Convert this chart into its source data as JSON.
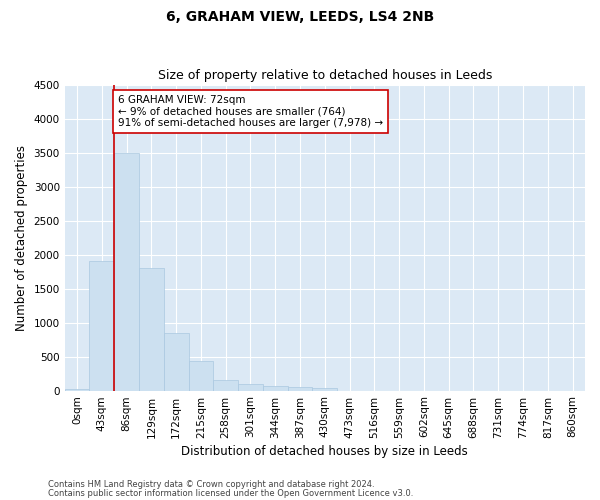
{
  "title": "6, GRAHAM VIEW, LEEDS, LS4 2NB",
  "subtitle": "Size of property relative to detached houses in Leeds",
  "xlabel": "Distribution of detached houses by size in Leeds",
  "ylabel": "Number of detached properties",
  "bar_color": "#cce0f0",
  "bar_edge_color": "#aac8e0",
  "categories": [
    "0sqm",
    "43sqm",
    "86sqm",
    "129sqm",
    "172sqm",
    "215sqm",
    "258sqm",
    "301sqm",
    "344sqm",
    "387sqm",
    "430sqm",
    "473sqm",
    "516sqm",
    "559sqm",
    "602sqm",
    "645sqm",
    "688sqm",
    "731sqm",
    "774sqm",
    "817sqm",
    "860sqm"
  ],
  "values": [
    20,
    1900,
    3500,
    1800,
    850,
    430,
    150,
    95,
    70,
    55,
    40,
    0,
    0,
    0,
    0,
    0,
    0,
    0,
    0,
    0,
    0
  ],
  "ylim": [
    0,
    4500
  ],
  "yticks": [
    0,
    500,
    1000,
    1500,
    2000,
    2500,
    3000,
    3500,
    4000,
    4500
  ],
  "property_line_color": "#cc0000",
  "annotation_text": "6 GRAHAM VIEW: 72sqm\n← 9% of detached houses are smaller (764)\n91% of semi-detached houses are larger (7,978) →",
  "annotation_box_color": "#ffffff",
  "annotation_box_edge": "#cc0000",
  "plot_bg_color": "#dce9f5",
  "footer_line1": "Contains HM Land Registry data © Crown copyright and database right 2024.",
  "footer_line2": "Contains public sector information licensed under the Open Government Licence v3.0.",
  "title_fontsize": 10,
  "subtitle_fontsize": 9,
  "axis_label_fontsize": 8.5,
  "tick_fontsize": 7.5,
  "annotation_fontsize": 7.5
}
